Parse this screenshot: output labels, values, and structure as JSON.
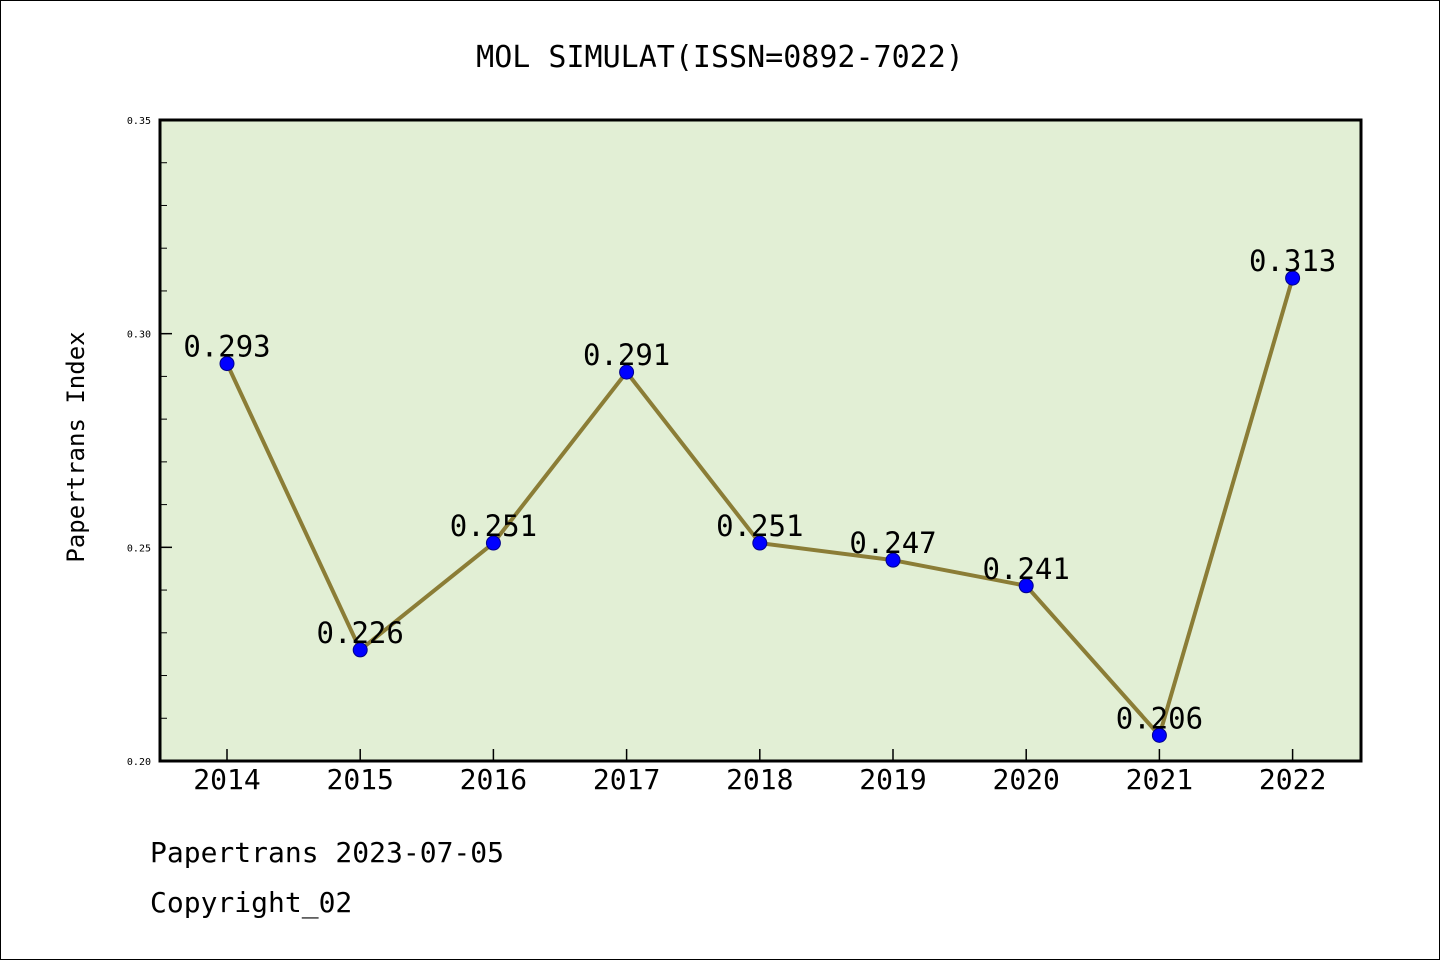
{
  "chart_data": {
    "type": "line",
    "title": "MOL SIMULAT(ISSN=0892-7022)",
    "xlabel": "",
    "ylabel": "Papertrans Index",
    "categories": [
      "2014",
      "2015",
      "2016",
      "2017",
      "2018",
      "2019",
      "2020",
      "2021",
      "2022"
    ],
    "series": [
      {
        "values": [
          0.293,
          0.226,
          0.251,
          0.291,
          0.251,
          0.247,
          0.241,
          0.206,
          0.313
        ]
      }
    ],
    "data_labels": [
      "0.293",
      "0.226",
      "0.251",
      "0.291",
      "0.251",
      "0.247",
      "0.241",
      "0.206",
      "0.313"
    ],
    "ylim": [
      0.2,
      0.35
    ],
    "y_ticks": [
      0.2,
      0.25,
      0.3,
      0.35
    ],
    "y_tick_labels": [
      "0.20",
      "0.25",
      "0.30",
      "0.35"
    ],
    "y_minor_step": 0.01,
    "grid": false,
    "colors": {
      "plot_background": "#e2efd5",
      "line": "#8b7d36",
      "marker": "#0000ff",
      "axes": "#000000"
    }
  },
  "footer": {
    "date_line": "Papertrans 2023-07-05",
    "copyright": "Copyright_02"
  }
}
